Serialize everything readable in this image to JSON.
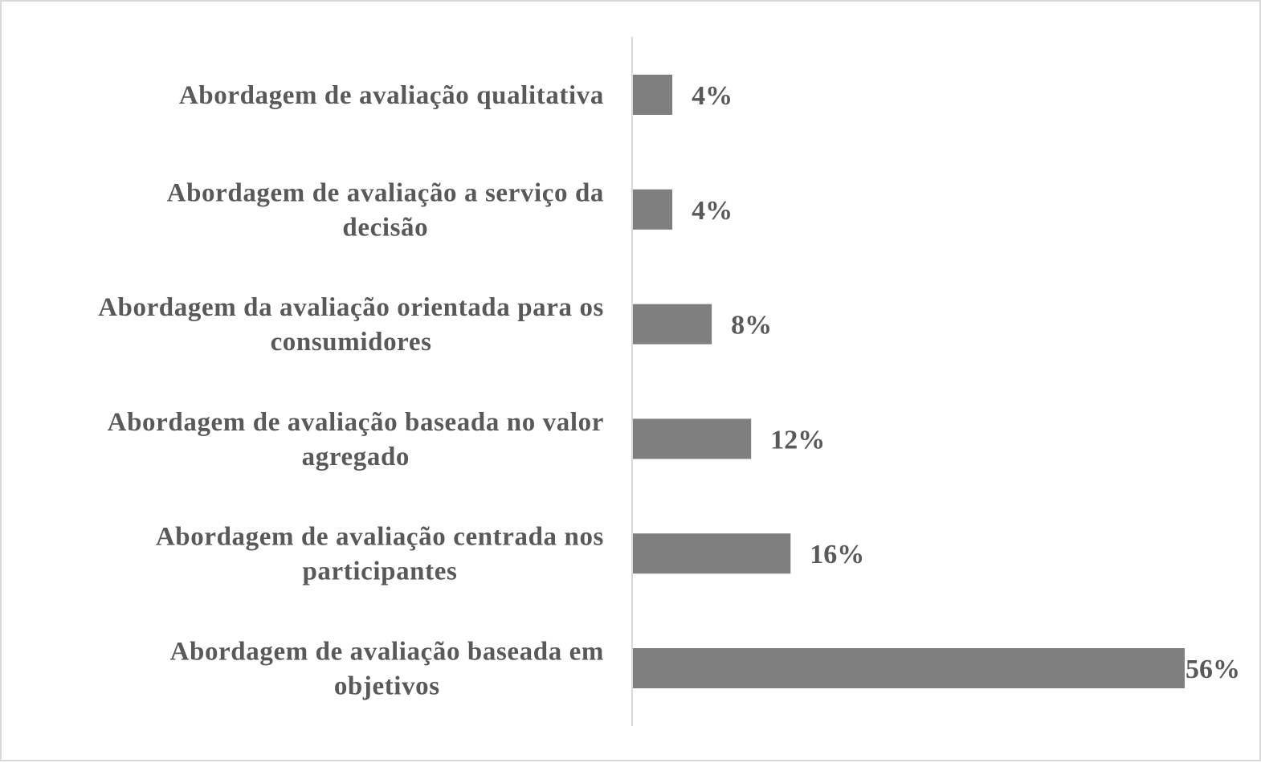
{
  "chart_data": {
    "type": "bar",
    "orientation": "horizontal",
    "categories": [
      "Abordagem de avaliação qualitativa",
      "Abordagem de avaliação a serviço da decisão",
      "Abordagem da avaliação orientada para os consumidores",
      "Abordagem de avaliação baseada no valor agregado",
      "Abordagem de avaliação centrada nos participantes",
      "Abordagem de avaliação baseada em objetivos"
    ],
    "category_lines": [
      [
        "Abordagem de avaliação qualitativa"
      ],
      [
        "Abordagem de avaliação a serviço da",
        "decisão"
      ],
      [
        "Abordagem da avaliação orientada para os",
        "consumidores"
      ],
      [
        "Abordagem de avaliação baseada no valor",
        "agregado"
      ],
      [
        "Abordagem de avaliação centrada nos",
        "participantes"
      ],
      [
        "Abordagem de avaliação baseada em",
        "objetivos"
      ]
    ],
    "values": [
      4,
      4,
      8,
      12,
      16,
      56
    ],
    "value_labels": [
      "4%",
      "4%",
      "8%",
      "12%",
      "16%",
      "56%"
    ],
    "title": "",
    "xlabel": "",
    "ylabel": "",
    "xlim": [
      0,
      56
    ],
    "grid": false,
    "legend": "none",
    "colors": {
      "bar": "#7f7f80",
      "axis": "#d9d9d9",
      "text": "#595959",
      "border": "#d9d9d9"
    }
  }
}
